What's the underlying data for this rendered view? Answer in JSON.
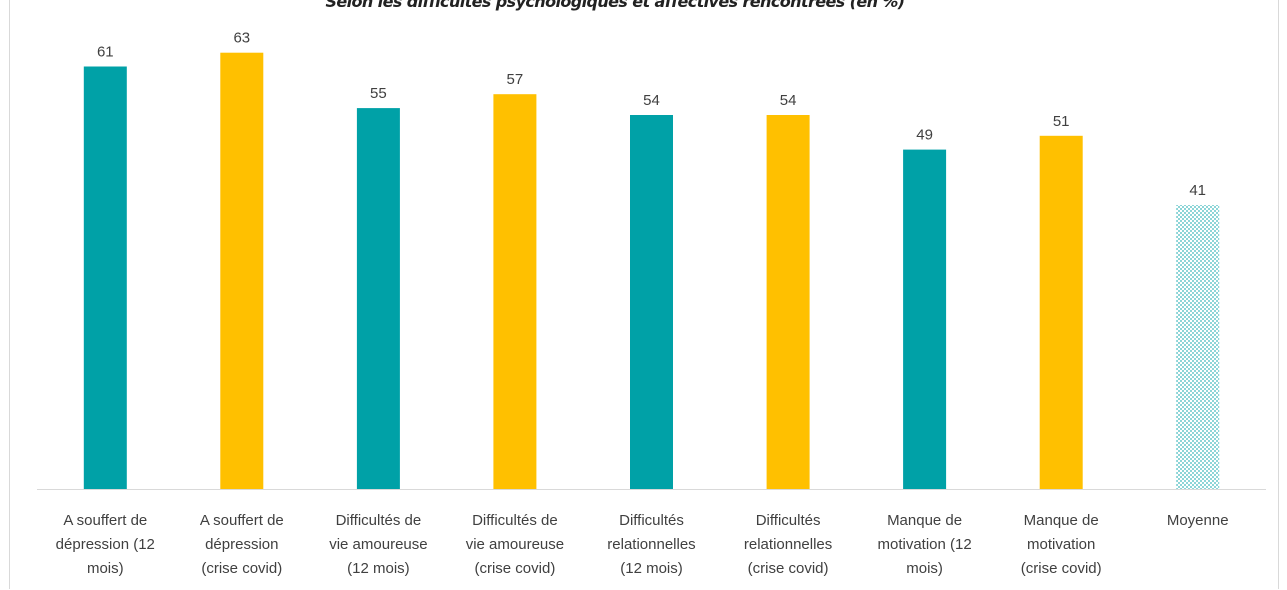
{
  "chart_data": {
    "type": "bar",
    "title": "Selon les difficultés psychologiques et affectives rencontrées (en %)",
    "categories": [
      [
        "A souffert de",
        "dépression (12",
        "mois)"
      ],
      [
        "A souffert de",
        "dépression",
        "(crise covid)"
      ],
      [
        "Difficultés de",
        "vie amoureuse",
        "(12 mois)"
      ],
      [
        "Difficultés de",
        "vie amoureuse",
        "(crise covid)"
      ],
      [
        "Difficultés",
        "relationnelles",
        "(12 mois)"
      ],
      [
        "Difficultés",
        "relationnelles",
        "(crise covid)"
      ],
      [
        "Manque de",
        "motivation (12",
        "mois)"
      ],
      [
        "Manque de",
        "motivation",
        "(crise covid)"
      ],
      [
        "Moyenne"
      ]
    ],
    "values": [
      61,
      63,
      55,
      57,
      54,
      54,
      49,
      51,
      41
    ],
    "bar_styles": [
      "teal",
      "yellow",
      "teal",
      "yellow",
      "teal",
      "yellow",
      "teal",
      "yellow",
      "dotted"
    ],
    "colors": {
      "teal": "#00a1a7",
      "yellow": "#ffc000",
      "dotted": "#5fc6c9",
      "axis": "#d9d9d9",
      "label": "#404040"
    },
    "ylim": [
      0,
      70
    ],
    "grid": false,
    "legend": "none"
  }
}
